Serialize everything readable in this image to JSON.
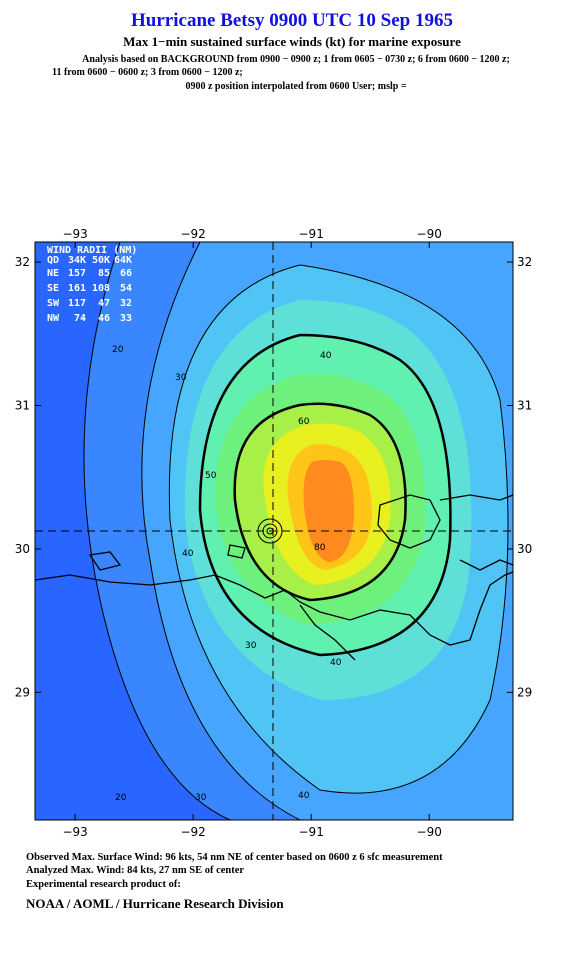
{
  "header": {
    "title": "Hurricane Betsy 0900 UTC 10 Sep 1965",
    "subtitle": "Max 1−min sustained surface winds (kt) for marine exposure",
    "analysis": [
      "Analysis based on  BACKGROUND from 0900 − 0900 z;  1 from 0605 − 0730 z;  6 from 0600 − 1200 z;",
      "11 from 0600 − 0600 z;  3 from 0600 − 1200 z;",
      "0900 z position interpolated from 0600 User; mslp ="
    ]
  },
  "map": {
    "xlim": [
      -93.34,
      -89.29
    ],
    "ylim": [
      28.11,
      32.14
    ],
    "xticks": [
      {
        "value": -93,
        "label": "−93"
      },
      {
        "value": -92,
        "label": "−92"
      },
      {
        "value": -91,
        "label": "−91"
      },
      {
        "value": -90,
        "label": "−90"
      }
    ],
    "yticks": [
      29,
      30,
      31,
      32
    ]
  },
  "wind_radii": {
    "title": "WIND RADII (NM)",
    "columns": [
      "QD",
      "34K",
      "50K",
      "64K"
    ],
    "rows": [
      [
        "NE",
        157,
        85,
        66
      ],
      [
        "SE",
        161,
        108,
        54
      ],
      [
        "SW",
        117,
        47,
        32
      ],
      [
        "NW",
        74,
        46,
        33
      ]
    ]
  },
  "contour_labels": [
    20,
    30,
    40,
    50,
    60,
    80,
    40,
    30,
    40,
    30,
    20,
    40
  ],
  "footer": [
    "Observed Max. Surface Wind: 96 kts, 54 nm NE of center based on 0600 z 6 sfc measurement",
    "Analyzed Max. Wind: 84 kts, 27 nm SE of center",
    "Experimental research product of:",
    "NOAA / AOML / Hurricane Research Division"
  ]
}
